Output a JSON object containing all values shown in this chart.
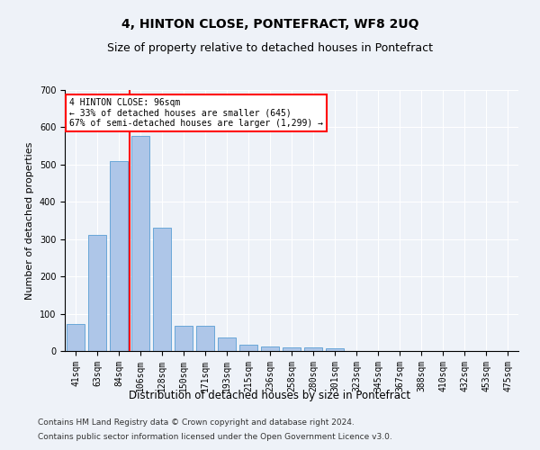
{
  "title": "4, HINTON CLOSE, PONTEFRACT, WF8 2UQ",
  "subtitle": "Size of property relative to detached houses in Pontefract",
  "xlabel": "Distribution of detached houses by size in Pontefract",
  "ylabel": "Number of detached properties",
  "categories": [
    "41sqm",
    "63sqm",
    "84sqm",
    "106sqm",
    "128sqm",
    "150sqm",
    "171sqm",
    "193sqm",
    "215sqm",
    "236sqm",
    "258sqm",
    "280sqm",
    "301sqm",
    "323sqm",
    "345sqm",
    "367sqm",
    "388sqm",
    "410sqm",
    "432sqm",
    "453sqm",
    "475sqm"
  ],
  "values": [
    72,
    312,
    510,
    578,
    330,
    68,
    68,
    37,
    18,
    13,
    10,
    10,
    8,
    0,
    0,
    0,
    0,
    0,
    0,
    0,
    0
  ],
  "bar_color": "#aec6e8",
  "bar_edge_color": "#5a9fd4",
  "vline_x": 2.5,
  "vline_color": "red",
  "annotation_text": "4 HINTON CLOSE: 96sqm\n← 33% of detached houses are smaller (645)\n67% of semi-detached houses are larger (1,299) →",
  "annotation_box_color": "white",
  "annotation_box_edge_color": "red",
  "ylim": [
    0,
    700
  ],
  "yticks": [
    0,
    100,
    200,
    300,
    400,
    500,
    600,
    700
  ],
  "footer1": "Contains HM Land Registry data © Crown copyright and database right 2024.",
  "footer2": "Contains public sector information licensed under the Open Government Licence v3.0.",
  "background_color": "#eef2f8",
  "plot_bg_color": "#eef2f8",
  "title_fontsize": 10,
  "subtitle_fontsize": 9,
  "xlabel_fontsize": 8.5,
  "ylabel_fontsize": 8,
  "tick_fontsize": 7,
  "footer_fontsize": 6.5
}
